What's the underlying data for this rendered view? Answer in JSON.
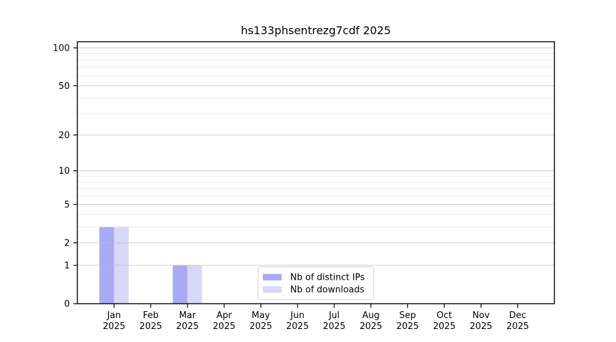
{
  "figure": {
    "title": "hs133phsentrezg7cdf 2025"
  },
  "chart_data": {
    "type": "bar",
    "title": "hs133phsentrezg7cdf 2025",
    "categories": [
      "Jan 2025",
      "Feb 2025",
      "Mar 2025",
      "Apr 2025",
      "May 2025",
      "Jun 2025",
      "Jul 2025",
      "Aug 2025",
      "Sep 2025",
      "Oct 2025",
      "Nov 2025",
      "Dec 2025"
    ],
    "months": [
      "Jan",
      "Feb",
      "Mar",
      "Apr",
      "May",
      "Jun",
      "Jul",
      "Aug",
      "Sep",
      "Oct",
      "Nov",
      "Dec"
    ],
    "year": "2025",
    "series": [
      {
        "name": "Nb of distinct IPs",
        "color": "#a9a9f4",
        "values": [
          3,
          0,
          1,
          0,
          0,
          0,
          0,
          0,
          0,
          0,
          0,
          0
        ]
      },
      {
        "name": "Nb of downloads",
        "color": "#d7d7f8",
        "values": [
          3,
          0,
          1,
          0,
          0,
          0,
          0,
          0,
          0,
          0,
          0,
          0
        ]
      }
    ],
    "xlabel": "",
    "ylabel": "",
    "y_axis": {
      "scale": "log1p",
      "range": [
        0,
        100
      ],
      "major_ticks": [
        0,
        1,
        2,
        5,
        10,
        20,
        50,
        100
      ],
      "minor_gridlines": [
        3,
        4,
        6,
        7,
        8,
        9,
        30,
        40,
        60,
        70,
        80,
        90
      ]
    },
    "legend": {
      "entries": [
        "Nb of distinct IPs",
        "Nb of downloads"
      ],
      "position": "lower center inside"
    },
    "grid": true,
    "colors": {
      "grid_major": "#bdbdbd",
      "grid_minor": "#e7e7e7",
      "spine": "#000000",
      "tick": "#000000",
      "legend_border": "#cccccc",
      "legend_bg": "#ffffff",
      "background": "#ffffff"
    }
  }
}
